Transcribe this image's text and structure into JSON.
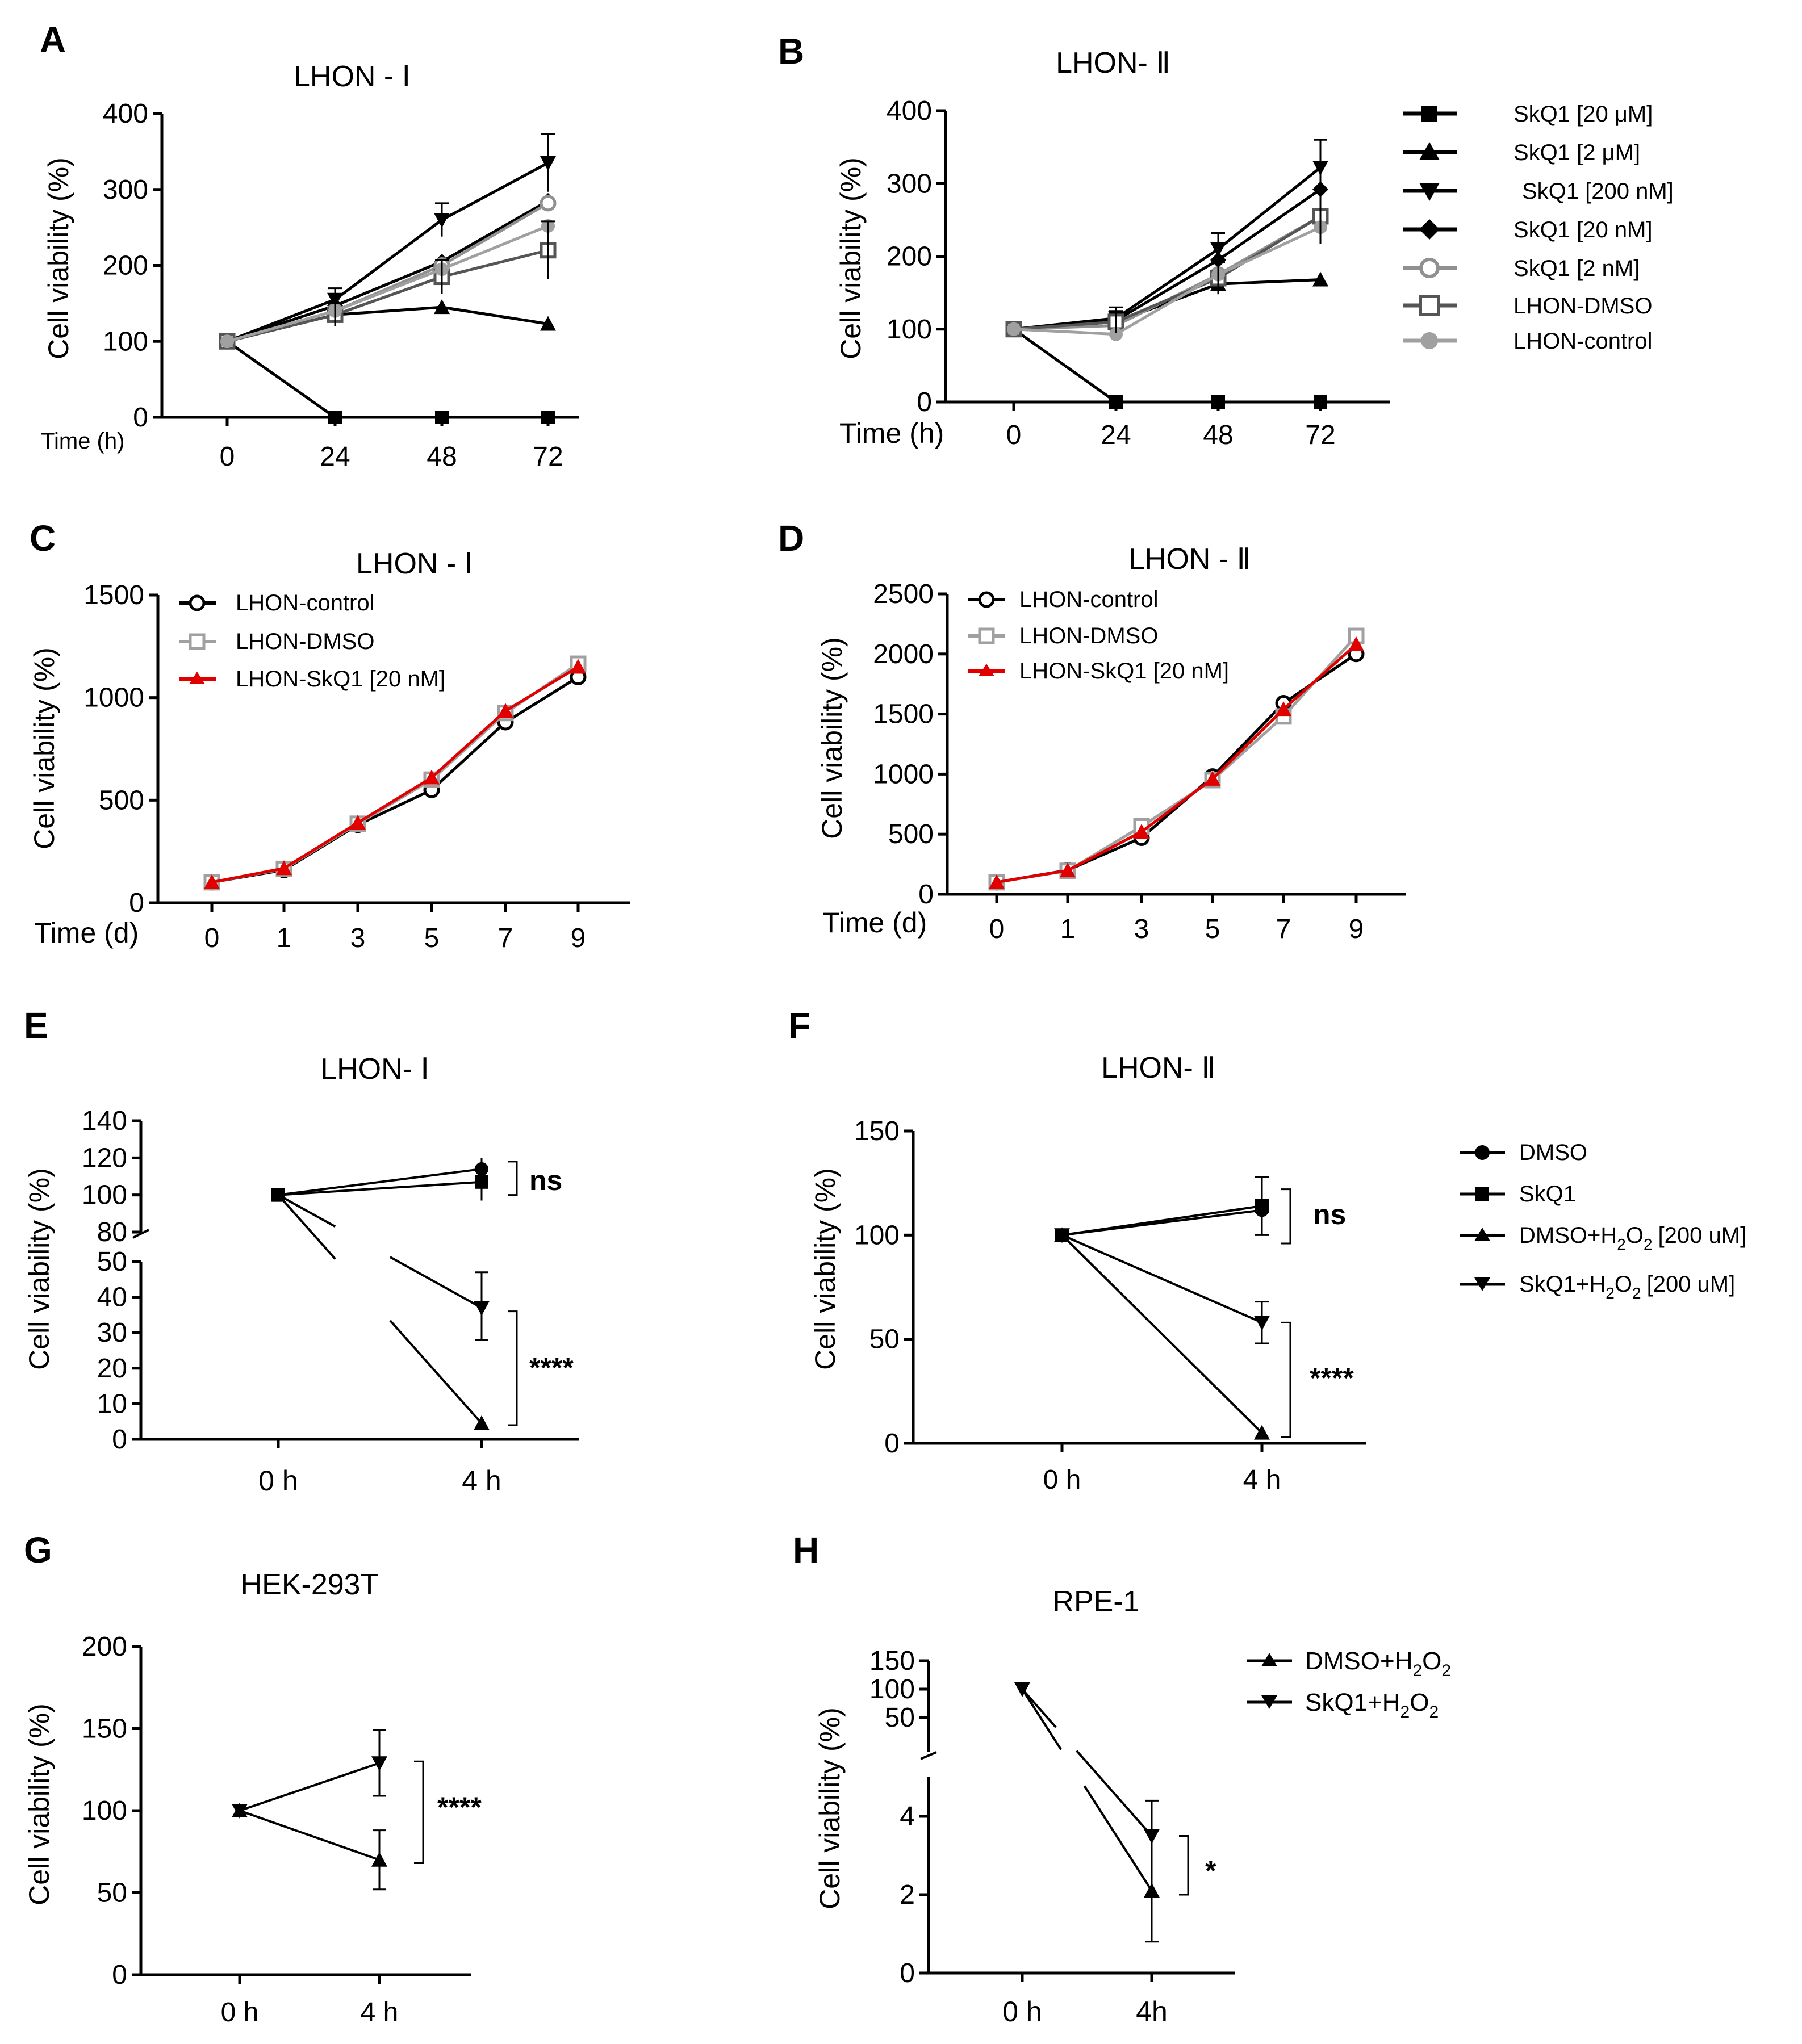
{
  "chart_data": [
    {
      "panel": "A",
      "type": "line",
      "title": "LHON - Ⅰ",
      "xlabel": "Time (h)",
      "ylabel": "Cell viability (%)",
      "categories": [
        "0",
        "24",
        "48",
        "72"
      ],
      "ylim": [
        0,
        400
      ],
      "yticks": [
        "0",
        "100",
        "200",
        "300",
        "400"
      ],
      "series": [
        {
          "name": "SkQ1 [20 μM]",
          "marker": "square",
          "color": "#000000",
          "values": [
            100,
            0,
            0,
            0
          ]
        },
        {
          "name": "SkQ1 [2 μM]",
          "marker": "triangle-up",
          "color": "#000000",
          "values": [
            100,
            135,
            145,
            123
          ]
        },
        {
          "name": "SkQ1 [200 nM]",
          "marker": "triangle-down",
          "color": "#000000",
          "values": [
            100,
            155,
            260,
            335
          ]
        },
        {
          "name": "SkQ1 [20 nM]",
          "marker": "diamond",
          "color": "#000000",
          "values": [
            100,
            147,
            205,
            285
          ]
        },
        {
          "name": "SkQ1 [2 nM]",
          "marker": "circle-open",
          "color": "#909090",
          "values": [
            100,
            140,
            200,
            282
          ]
        },
        {
          "name": "LHON-DMSO",
          "marker": "square-open",
          "color": "#555555",
          "values": [
            100,
            135,
            185,
            220
          ]
        },
        {
          "name": "LHON-control",
          "marker": "circle",
          "color": "#a0a0a0",
          "values": [
            100,
            140,
            195,
            252
          ]
        }
      ]
    },
    {
      "panel": "B",
      "type": "line",
      "title": "LHON- Ⅱ",
      "xlabel": "Time (h)",
      "ylabel": "Cell viability (%)",
      "categories": [
        "0",
        "24",
        "48",
        "72"
      ],
      "ylim": [
        0,
        400
      ],
      "yticks": [
        "0",
        "100",
        "200",
        "300",
        "400"
      ],
      "legend": [
        "SkQ1 [20 μM]",
        "SkQ1 [2 μM]",
        "SkQ1 [200 nM]",
        "SkQ1 [20 nM]",
        "SkQ1 [2 nM]",
        "LHON-DMSO",
        "LHON-control"
      ],
      "series": [
        {
          "name": "SkQ1 [20 μM]",
          "marker": "square",
          "color": "#000000",
          "values": [
            100,
            0,
            0,
            0
          ]
        },
        {
          "name": "SkQ1 [2 μM]",
          "marker": "triangle-up",
          "color": "#000000",
          "values": [
            100,
            110,
            162,
            168
          ]
        },
        {
          "name": "SkQ1 [200 nM]",
          "marker": "triangle-down",
          "color": "#000000",
          "values": [
            100,
            115,
            210,
            322
          ]
        },
        {
          "name": "SkQ1 [20 nM]",
          "marker": "diamond",
          "color": "#000000",
          "values": [
            100,
            112,
            195,
            292
          ]
        },
        {
          "name": "SkQ1 [2 nM]",
          "marker": "circle-open",
          "color": "#909090",
          "values": [
            100,
            105,
            175,
            255
          ]
        },
        {
          "name": "LHON-DMSO",
          "marker": "square-open",
          "color": "#555555",
          "values": [
            100,
            110,
            170,
            255
          ]
        },
        {
          "name": "LHON-control",
          "marker": "circle",
          "color": "#a0a0a0",
          "values": [
            100,
            93,
            175,
            240
          ]
        }
      ]
    },
    {
      "panel": "C",
      "type": "line",
      "title": "LHON - Ⅰ",
      "xlabel": "Time (d)",
      "ylabel": "Cell viability (%)",
      "categories": [
        "0",
        "1",
        "3",
        "5",
        "7",
        "9"
      ],
      "ylim": [
        0,
        1500
      ],
      "yticks": [
        "0",
        "500",
        "1000",
        "1500"
      ],
      "legend": [
        "LHON-control",
        "LHON-DMSO",
        "LHON-SkQ1 [20 nM]"
      ],
      "series": [
        {
          "name": "LHON-control",
          "marker": "circle-open",
          "color": "#000000",
          "values": [
            100,
            160,
            380,
            550,
            880,
            1100
          ]
        },
        {
          "name": "LHON-DMSO",
          "marker": "square-open",
          "color": "#a0a0a0",
          "values": [
            100,
            165,
            385,
            600,
            925,
            1165
          ]
        },
        {
          "name": "LHON-SkQ1 [20 nM]",
          "marker": "triangle-up",
          "color": "#e00000",
          "values": [
            100,
            168,
            390,
            610,
            935,
            1150
          ]
        }
      ]
    },
    {
      "panel": "D",
      "type": "line",
      "title": "LHON - Ⅱ",
      "xlabel": "Time (d)",
      "ylabel": "Cell viability (%)",
      "categories": [
        "0",
        "1",
        "3",
        "5",
        "7",
        "9"
      ],
      "ylim": [
        0,
        2500
      ],
      "yticks": [
        "0",
        "500",
        "1000",
        "1500",
        "2000",
        "2500"
      ],
      "legend": [
        "LHON-control",
        "LHON-DMSO",
        "LHON-SkQ1 [20 nM]"
      ],
      "series": [
        {
          "name": "LHON-control",
          "marker": "circle-open",
          "color": "#000000",
          "values": [
            100,
            200,
            470,
            980,
            1590,
            2000
          ]
        },
        {
          "name": "LHON-DMSO",
          "marker": "square-open",
          "color": "#a0a0a0",
          "values": [
            100,
            195,
            565,
            950,
            1480,
            2150
          ]
        },
        {
          "name": "LHON-SkQ1 [20 nM]",
          "marker": "triangle-up",
          "color": "#e00000",
          "values": [
            100,
            198,
            520,
            960,
            1540,
            2080
          ]
        }
      ]
    },
    {
      "panel": "E",
      "type": "line",
      "title": "LHON- Ⅰ",
      "xlabel": "",
      "ylabel": "Cell viability (%)",
      "categories": [
        "0 h",
        "4 h"
      ],
      "axis_break": true,
      "upper_yticks": [
        "80",
        "100",
        "120",
        "140"
      ],
      "lower_yticks": [
        "0",
        "10",
        "20",
        "30",
        "40",
        "50"
      ],
      "series": [
        {
          "name": "DMSO",
          "marker": "circle",
          "values": [
            100,
            114
          ]
        },
        {
          "name": "SkQ1",
          "marker": "square",
          "values": [
            100,
            107
          ]
        },
        {
          "name": "DMSO+H2O2 [200 uM]",
          "marker": "triangle-up",
          "values": [
            100,
            4.5
          ]
        },
        {
          "name": "SkQ1+H2O2 [200 uM]",
          "marker": "triangle-down",
          "values": [
            100,
            37
          ]
        }
      ],
      "annotations": [
        "ns",
        "****"
      ]
    },
    {
      "panel": "F",
      "type": "line",
      "title": "LHON- Ⅱ",
      "xlabel": "",
      "ylabel": "Cell viability (%)",
      "categories": [
        "0 h",
        "4 h"
      ],
      "ylim": [
        0,
        150
      ],
      "yticks": [
        "0",
        "50",
        "100",
        "150"
      ],
      "legend": [
        "DMSO",
        "SkQ1",
        "DMSO+H",
        "SkQ1+H"
      ],
      "legend_suffix": "[200 uM]",
      "series": [
        {
          "name": "DMSO",
          "marker": "circle",
          "values": [
            100,
            112
          ]
        },
        {
          "name": "SkQ1",
          "marker": "square",
          "values": [
            100,
            114
          ]
        },
        {
          "name": "DMSO+H2O2 [200 uM]",
          "marker": "triangle-up",
          "values": [
            100,
            5
          ]
        },
        {
          "name": "SkQ1+H2O2 [200 uM]",
          "marker": "triangle-down",
          "values": [
            100,
            58
          ]
        }
      ],
      "annotations": [
        "ns",
        "****"
      ]
    },
    {
      "panel": "G",
      "type": "line",
      "title": "HEK-293T",
      "xlabel": "",
      "ylabel": "Cell viability (%)",
      "categories": [
        "0 h",
        "4 h"
      ],
      "ylim": [
        0,
        200
      ],
      "yticks": [
        "0",
        "50",
        "100",
        "150",
        "200"
      ],
      "series": [
        {
          "name": "DMSO+H2O2",
          "marker": "triangle-up",
          "values": [
            100,
            70
          ]
        },
        {
          "name": "SkQ1+H2O2",
          "marker": "triangle-down",
          "values": [
            100,
            129
          ]
        }
      ],
      "annotations": [
        "****"
      ]
    },
    {
      "panel": "H",
      "type": "line",
      "title": "RPE-1",
      "xlabel": "",
      "ylabel": "Cell viability (%)",
      "categories": [
        "0 h",
        "4h"
      ],
      "axis_break": true,
      "upper_yticks": [
        "50",
        "100",
        "150"
      ],
      "lower_yticks": [
        "0",
        "2",
        "4"
      ],
      "legend": [
        "DMSO+H",
        "SkQ1+H"
      ],
      "series": [
        {
          "name": "DMSO+H2O2",
          "marker": "triangle-up",
          "values": [
            100,
            2.1
          ]
        },
        {
          "name": "SkQ1+H2O2",
          "marker": "triangle-down",
          "values": [
            100,
            3.5
          ]
        }
      ],
      "annotations": [
        "*"
      ]
    }
  ],
  "sub_two": "2",
  "sub_O": "O"
}
